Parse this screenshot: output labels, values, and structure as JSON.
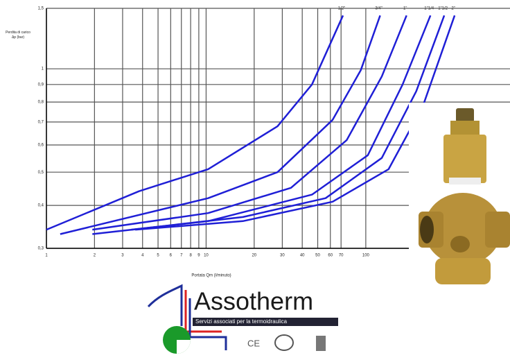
{
  "chart_data": {
    "type": "line",
    "ylabel": "Perdita di carico Δp (bar)",
    "xlabel": "Portata Qm (l/minuto)",
    "xscale": "log",
    "yscale": "log",
    "grid": true,
    "xlim": [
      1,
      800
    ],
    "ylim": [
      0.3,
      1.5
    ],
    "xticks": [
      1,
      2,
      3,
      4,
      5,
      6,
      7,
      8,
      9,
      10,
      20,
      30,
      40,
      50,
      60,
      70,
      100
    ],
    "yticks": [
      {
        "value": 0.3,
        "label": "0,3"
      },
      {
        "value": 0.4,
        "label": "0,4"
      },
      {
        "value": 0.5,
        "label": "0,5"
      },
      {
        "value": 0.6,
        "label": "0,6"
      },
      {
        "value": 0.7,
        "label": "0,7"
      },
      {
        "value": 0.8,
        "label": "0,8"
      },
      {
        "value": 0.9,
        "label": "0,9"
      },
      1,
      {
        "value": 1.5,
        "label": "1,5"
      }
    ],
    "series": [
      {
        "name": "1/2\"",
        "color": "#1f1fd6",
        "x": [
          1,
          3.8,
          10.3,
          28,
          46,
          72
        ],
        "values": [
          0.34,
          0.44,
          0.51,
          0.68,
          0.9,
          1.43
        ]
      },
      {
        "name": "3/4\"",
        "color": "#1f1fd6",
        "x": [
          1.22,
          10.3,
          28,
          62,
          93,
          123
        ],
        "values": [
          0.33,
          0.42,
          0.5,
          0.71,
          0.99,
          1.43
        ]
      },
      {
        "name": "1\"",
        "color": "#1f1fd6",
        "x": [
          1.94,
          10.3,
          34,
          76,
          126,
          180
        ],
        "values": [
          0.34,
          0.38,
          0.45,
          0.62,
          0.95,
          1.43
        ]
      },
      {
        "name": "1\"1/4",
        "color": "#1f1fd6",
        "x": [
          1.94,
          10.3,
          46,
          103,
          170,
          254
        ],
        "values": [
          0.33,
          0.36,
          0.43,
          0.56,
          0.9,
          1.43
        ]
      },
      {
        "name": "1\"1/2",
        "color": "#1f1fd6",
        "x": [
          3.4,
          17,
          56,
          126,
          207,
          310
        ],
        "values": [
          0.34,
          0.37,
          0.42,
          0.55,
          0.86,
          1.43
        ]
      },
      {
        "name": "2\"",
        "color": "#1f1fd6",
        "x": [
          3.6,
          17,
          62,
          139,
          228,
          360
        ],
        "values": [
          0.34,
          0.36,
          0.41,
          0.51,
          0.78,
          1.43
        ]
      }
    ]
  },
  "logo": {
    "name": "Assotherm",
    "tagline": "Servizi associati per la termoidraulica",
    "mark": "CE"
  }
}
